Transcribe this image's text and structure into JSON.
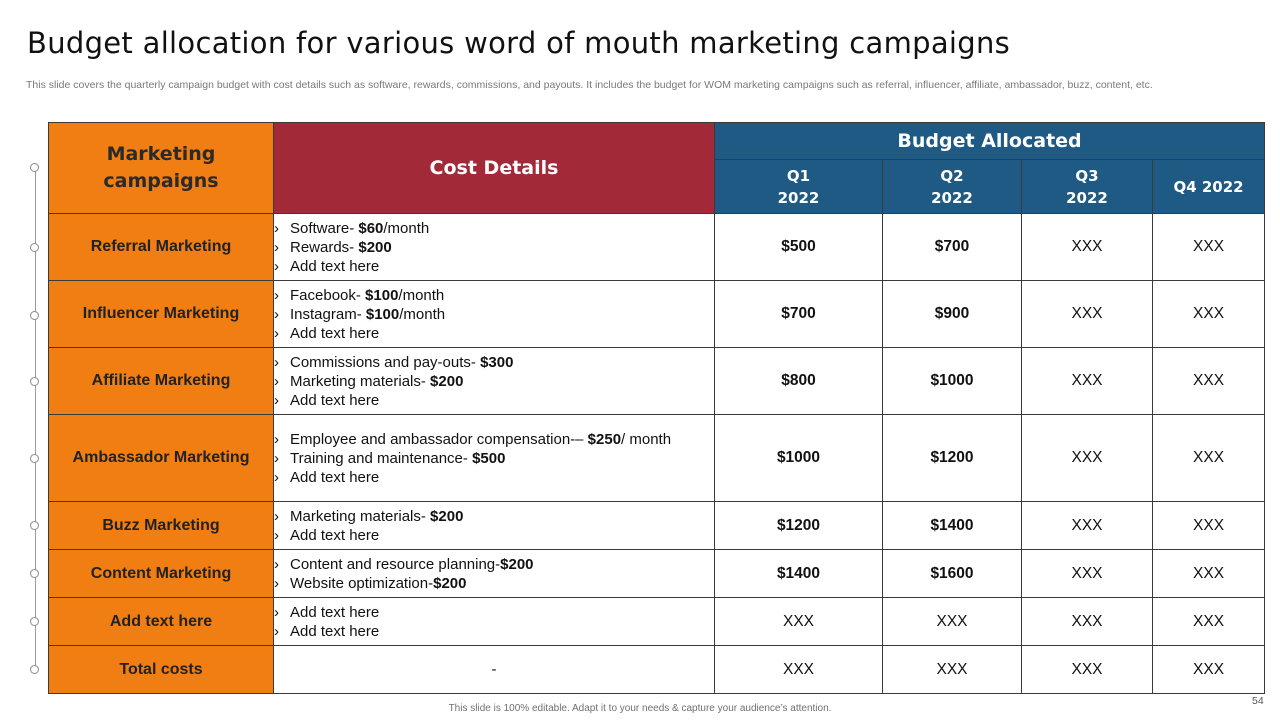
{
  "title": "Budget allocation for various word of mouth marketing campaigns",
  "subtitle": "This slide covers the quarterly campaign budget with cost details such as software, rewards, commissions, and payouts. It includes the budget for WOM  marketing campaigns such as referral, influencer, affiliate, ambassador, buzz, content, etc.",
  "table": {
    "header": {
      "campaigns": "Marketing campaigns",
      "cost": "Cost Details",
      "budget": "Budget Allocated",
      "quarters": [
        {
          "label": "Q1",
          "year": "2022"
        },
        {
          "label": "Q2",
          "year": "2022"
        },
        {
          "label": "Q3",
          "year": "2022"
        },
        {
          "label": "Q4 2022",
          "year": ""
        }
      ]
    },
    "bullet": "›",
    "rows": [
      {
        "campaign": "Referral Marketing",
        "costs": [
          {
            "pre": "Software- ",
            "b": "$60",
            "post": "/month"
          },
          {
            "pre": "Rewards- ",
            "b": "$200",
            "post": ""
          },
          {
            "pre": "Add text here",
            "b": "",
            "post": ""
          }
        ],
        "values": [
          "$500",
          "$700",
          "XXX",
          "XXX"
        ]
      },
      {
        "campaign": "Influencer Marketing",
        "costs": [
          {
            "pre": "Facebook- ",
            "b": "$100",
            "post": "/month"
          },
          {
            "pre": "Instagram-  ",
            "b": "$100",
            "post": "/month"
          },
          {
            "pre": "Add text here",
            "b": "",
            "post": ""
          }
        ],
        "values": [
          "$700",
          "$900",
          "XXX",
          "XXX"
        ]
      },
      {
        "campaign": "Affiliate Marketing",
        "costs": [
          {
            "pre": "Commissions and pay-outs-  ",
            "b": "$300",
            "post": ""
          },
          {
            "pre": "Marketing materials- ",
            "b": "$200",
            "post": ""
          },
          {
            "pre": "Add text here",
            "b": "",
            "post": ""
          }
        ],
        "values": [
          "$800",
          "$1000",
          "XXX",
          "XXX"
        ]
      },
      {
        "campaign": "Ambassador Marketing",
        "costs": [
          {
            "pre": "Employee and ambassador compensation-– ",
            "b": "$250",
            "post": "/ month"
          },
          {
            "pre": "Training and maintenance- ",
            "b": "$500",
            "post": ""
          },
          {
            "pre": "Add text here",
            "b": "",
            "post": ""
          }
        ],
        "values": [
          "$1000",
          "$1200",
          "XXX",
          "XXX"
        ]
      },
      {
        "campaign": "Buzz Marketing",
        "costs": [
          {
            "pre": "Marketing materials- ",
            "b": "$200",
            "post": ""
          },
          {
            "pre": "Add text here",
            "b": "",
            "post": ""
          }
        ],
        "values": [
          "$1200",
          "$1400",
          "XXX",
          "XXX"
        ]
      },
      {
        "campaign": "Content Marketing",
        "costs": [
          {
            "pre": "Content and resource planning-",
            "b": "$200",
            "post": ""
          },
          {
            "pre": "Website optimization-",
            "b": "$200",
            "post": ""
          }
        ],
        "values": [
          "$1400",
          "$1600",
          "XXX",
          "XXX"
        ]
      },
      {
        "campaign": "Add text here",
        "costs": [
          {
            "pre": "Add text here",
            "b": "",
            "post": ""
          },
          {
            "pre": "Add text here",
            "b": "",
            "post": ""
          }
        ],
        "values": [
          "XXX",
          "XXX",
          "XXX",
          "XXX"
        ]
      }
    ],
    "total": {
      "label": "Total costs",
      "cost": "-",
      "values": [
        "XXX",
        "XXX",
        "XXX",
        "XXX"
      ]
    }
  },
  "footer": "This slide is 100% editable. Adapt it to your needs & capture your audience’s attention.",
  "page_number": "54",
  "colors": {
    "orange": "#f07e12",
    "maroon": "#a22a38",
    "blue": "#1e5a83"
  }
}
